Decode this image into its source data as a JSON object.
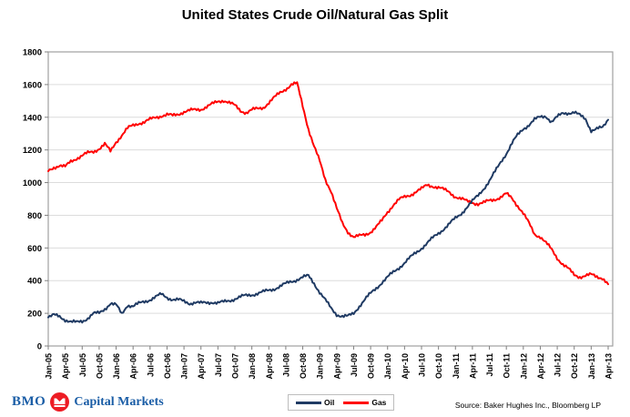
{
  "title": "United States Crude Oil/Natural Gas Split",
  "chart_data": {
    "type": "line",
    "title": "United States Crude Oil/Natural Gas Split",
    "xlabel": "",
    "ylabel": "",
    "ylim": [
      0,
      1800
    ],
    "ytick_step": 200,
    "grid": "horizontal",
    "legend_position": "bottom-center",
    "x_tick_labels": [
      "Jan-05",
      "Apr-05",
      "Jul-05",
      "Oct-05",
      "Jan-06",
      "Apr-06",
      "Jul-06",
      "Oct-06",
      "Jan-07",
      "Apr-07",
      "Jul-07",
      "Oct-07",
      "Jan-08",
      "Apr-08",
      "Jul-08",
      "Oct-08",
      "Jan-09",
      "Apr-09",
      "Jul-09",
      "Oct-09",
      "Jan-10",
      "Apr-10",
      "Jul-10",
      "Oct-10",
      "Jan-11",
      "Apr-11",
      "Jul-11",
      "Oct-11",
      "Jan-12",
      "Apr-12",
      "Jul-12",
      "Oct-12",
      "Jan-13",
      "Apr-13"
    ],
    "x_resolution": "monthly",
    "series": [
      {
        "name": "Oil",
        "color": "#1F3A63",
        "values": [
          175,
          188,
          180,
          162,
          148,
          143,
          152,
          172,
          198,
          200,
          228,
          262,
          250,
          195,
          252,
          243,
          258,
          272,
          285,
          300,
          315,
          298,
          286,
          282,
          272,
          262,
          268,
          260,
          265,
          270,
          263,
          268,
          278,
          290,
          300,
          308,
          315,
          322,
          330,
          340,
          352,
          365,
          380,
          395,
          408,
          420,
          428,
          385,
          330,
          280,
          230,
          195,
          182,
          180,
          200,
          245,
          285,
          320,
          355,
          390,
          420,
          450,
          480,
          510,
          540,
          570,
          600,
          630,
          660,
          690,
          720,
          750,
          780,
          810,
          850,
          885,
          920,
          965,
          1010,
          1065,
          1125,
          1180,
          1240,
          1290,
          1330,
          1355,
          1385,
          1400,
          1408,
          1372,
          1400,
          1425,
          1428,
          1430,
          1410,
          1390,
          1320,
          1328,
          1335,
          1385
        ]
      },
      {
        "name": "Gas",
        "color": "#FF0000",
        "values": [
          1070,
          1095,
          1105,
          1095,
          1130,
          1150,
          1165,
          1180,
          1190,
          1210,
          1235,
          1190,
          1250,
          1290,
          1330,
          1350,
          1365,
          1370,
          1385,
          1400,
          1410,
          1415,
          1408,
          1420,
          1435,
          1440,
          1445,
          1450,
          1465,
          1480,
          1495,
          1505,
          1490,
          1470,
          1440,
          1430,
          1445,
          1450,
          1460,
          1490,
          1520,
          1550,
          1575,
          1600,
          1605,
          1470,
          1330,
          1220,
          1130,
          1020,
          950,
          840,
          750,
          700,
          668,
          672,
          680,
          700,
          730,
          765,
          820,
          865,
          895,
          910,
          925,
          945,
          960,
          985,
          980,
          970,
          955,
          940,
          915,
          900,
          885,
          880,
          870,
          875,
          890,
          900,
          910,
          930,
          905,
          860,
          810,
          750,
          685,
          670,
          630,
          590,
          540,
          500,
          470,
          435,
          425,
          430,
          435,
          425,
          418,
          378
        ]
      }
    ]
  },
  "legend": {
    "items": [
      {
        "label": "Oil",
        "color": "#1F3A63"
      },
      {
        "label": "Gas",
        "color": "#FF0000"
      }
    ]
  },
  "footer": {
    "logo_text": "BMO",
    "logo_suffix": "Capital Markets",
    "logo_blue": "#1A5DA6",
    "logo_red": "#ED1C24",
    "source": "Source: Baker Hughes Inc., Bloomberg LP"
  },
  "axis_style": {
    "grid_color": "#DCDCDC",
    "border_color": "#A0A0A0",
    "tick_color": "#808080"
  }
}
